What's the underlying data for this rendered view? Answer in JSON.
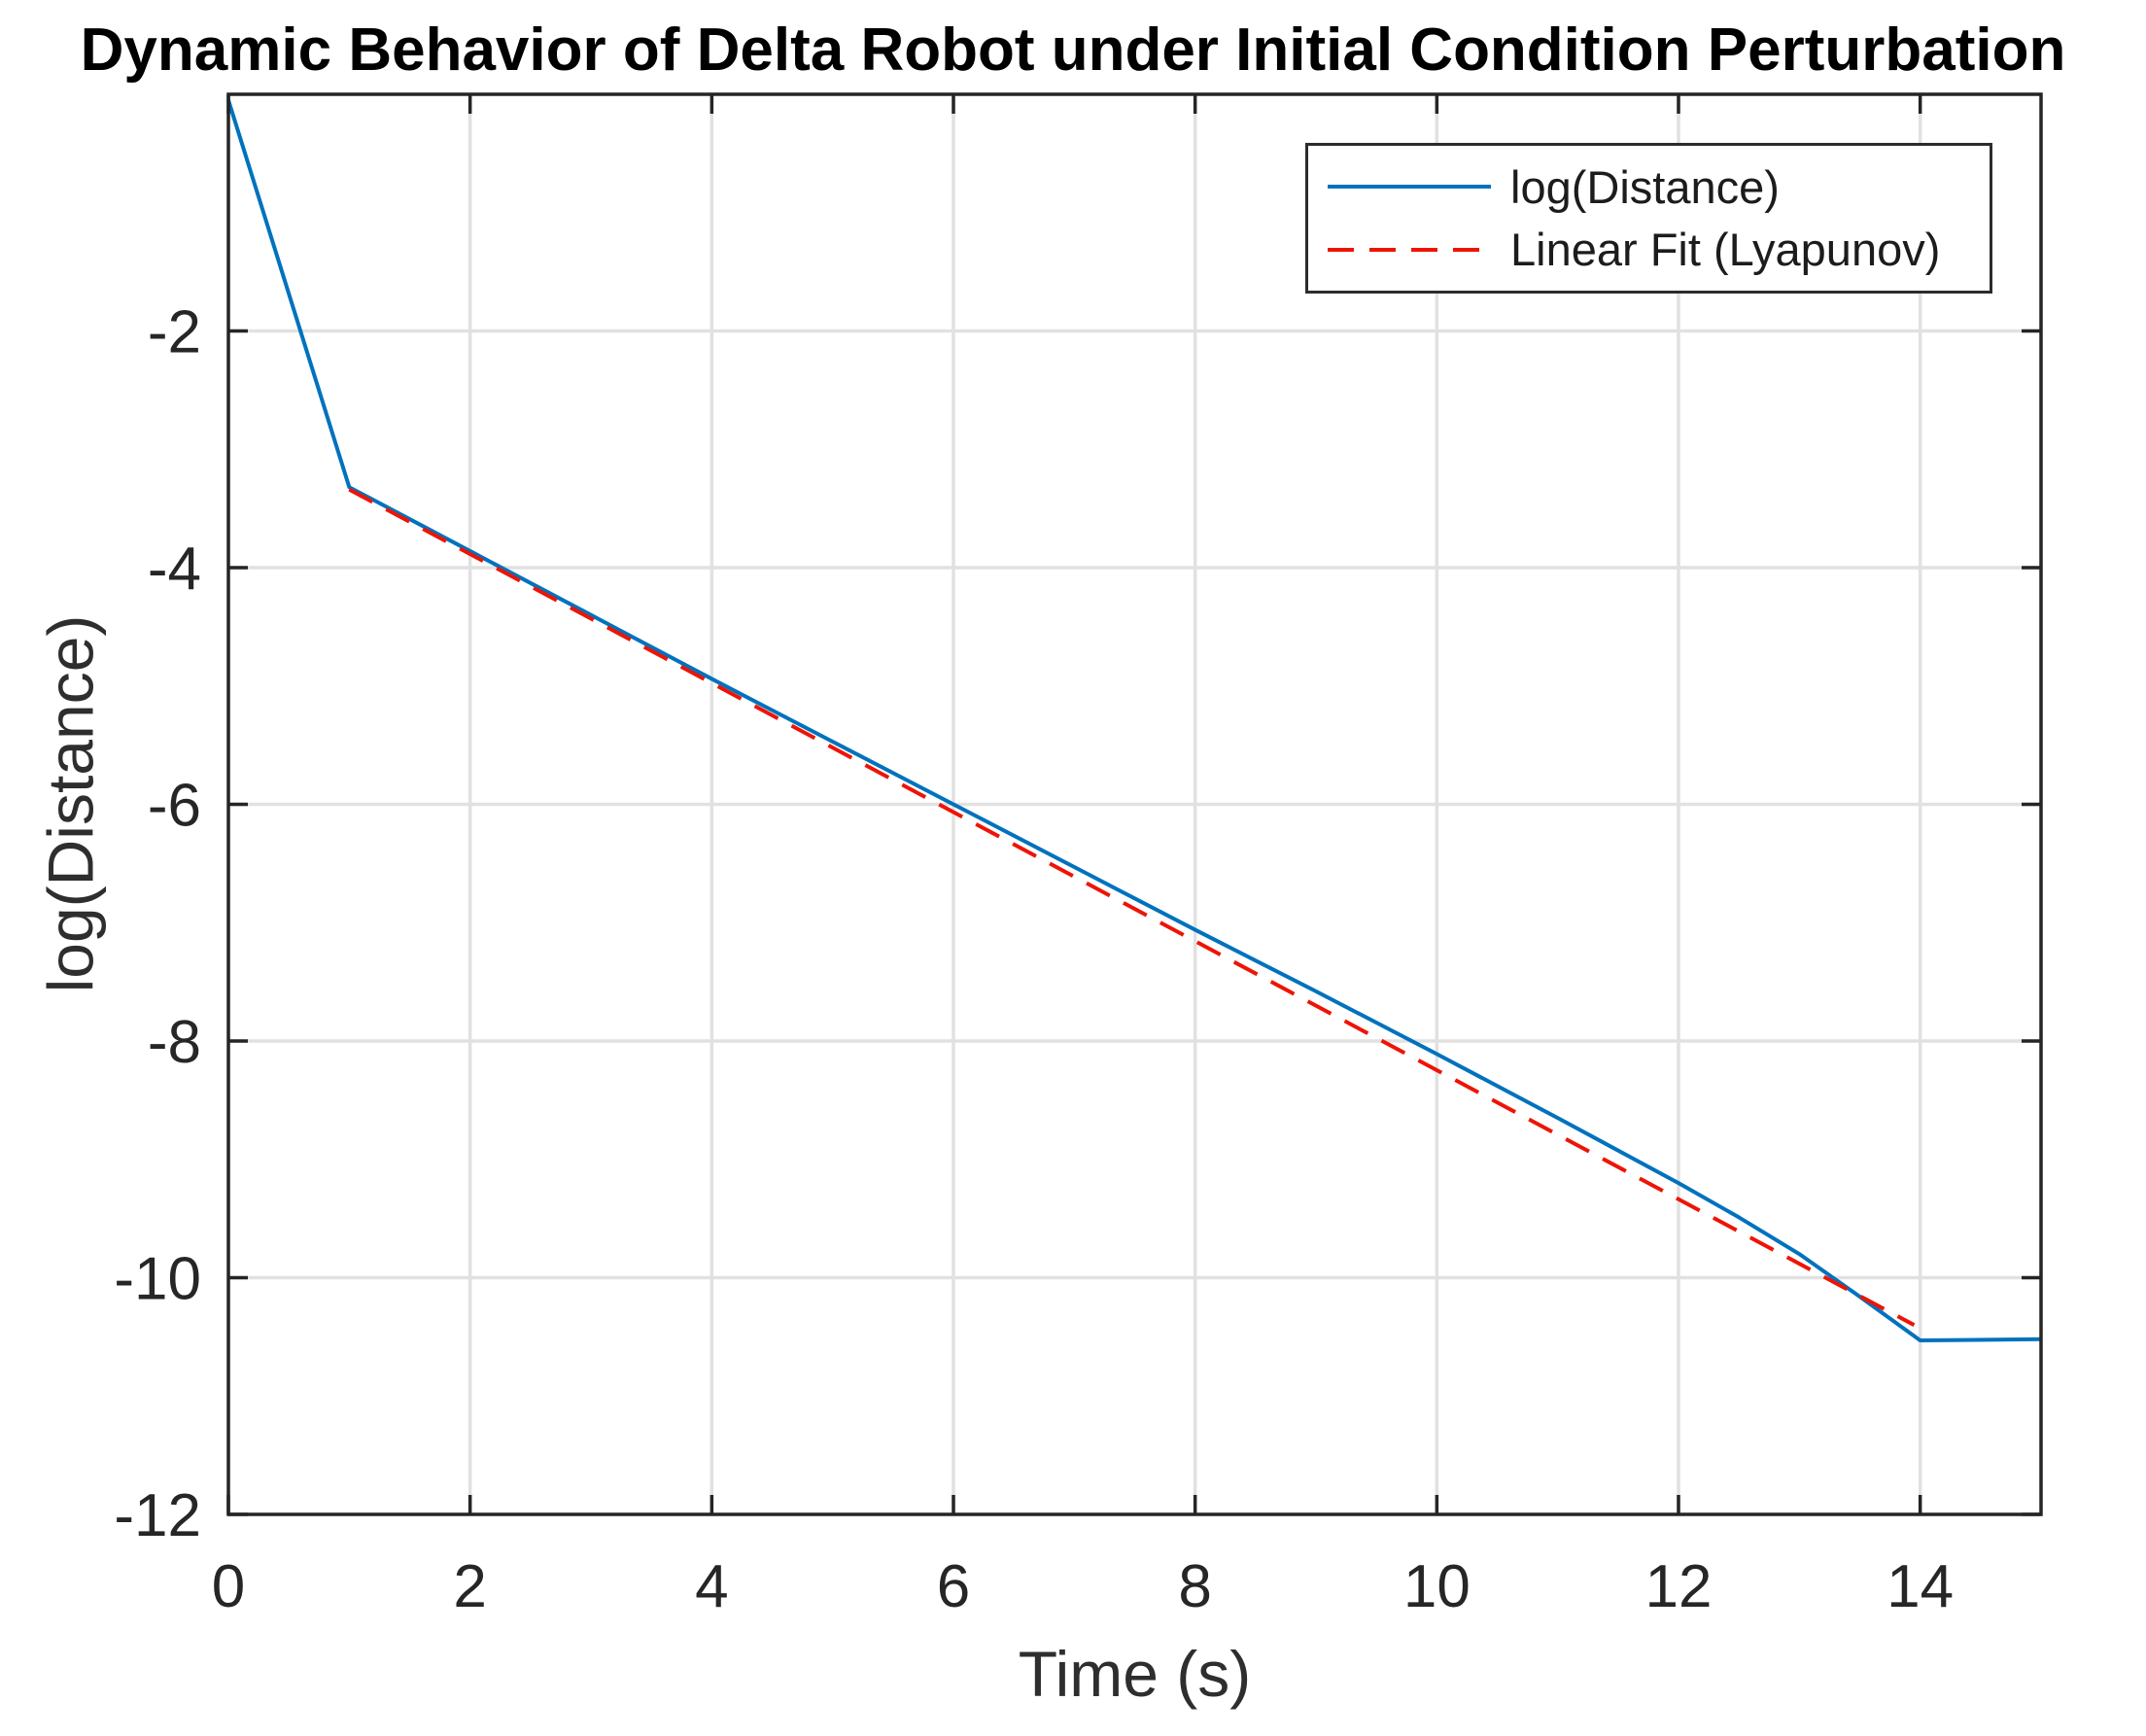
{
  "chart_data": {
    "type": "line",
    "title": "Dynamic Behavior of Delta Robot under Initial Condition Perturbation",
    "xlabel": "Time (s)",
    "ylabel": "log(Distance)",
    "xlim": [
      0,
      15
    ],
    "ylim": [
      -12,
      0
    ],
    "xticks": [
      0,
      2,
      4,
      6,
      8,
      10,
      12,
      14
    ],
    "yticks": [
      -2,
      -4,
      -6,
      -8,
      -10,
      -12
    ],
    "grid": true,
    "legend_position": "top-right",
    "colors": {
      "background": "#FFFFFF",
      "axis": "#252525",
      "grid": "#E1E1E1",
      "tick_label": "#262626"
    },
    "series": [
      {
        "name": "log(Distance)",
        "color": "#0072BD",
        "style": "solid",
        "x": [
          0,
          1,
          2,
          3,
          4,
          5,
          6,
          7,
          8,
          9,
          10,
          11,
          12,
          12.5,
          13,
          13.5,
          14,
          15
        ],
        "y": [
          -0.05,
          -3.32,
          -3.86,
          -4.4,
          -4.94,
          -5.47,
          -6.0,
          -6.53,
          -7.06,
          -7.58,
          -8.11,
          -8.65,
          -9.2,
          -9.49,
          -9.8,
          -10.16,
          -10.53,
          -10.52
        ]
      },
      {
        "name": "Linear Fit (Lyapunov)",
        "color": "#EE1405",
        "style": "dashed",
        "x": [
          1,
          13.95
        ],
        "y": [
          -3.34,
          -10.4
        ]
      }
    ]
  }
}
